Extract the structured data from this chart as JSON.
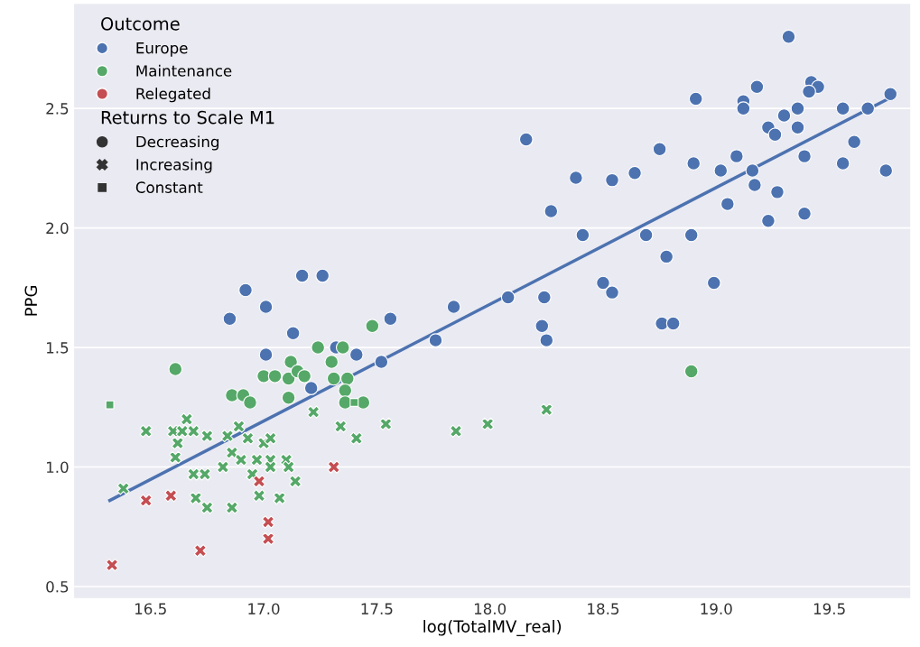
{
  "chart_data": {
    "type": "scatter",
    "xlabel": "log(TotalMV_real)",
    "ylabel": "PPG",
    "legend_title": [
      "Outcome",
      "Returns to Scale M1"
    ],
    "xlim": [
      16.16,
      19.86
    ],
    "ylim": [
      0.45,
      2.94
    ],
    "xticks": [
      16.5,
      {
        "value": 17,
        "label": "17.0"
      },
      17.5,
      {
        "value": 18,
        "label": "18.0"
      },
      18.5,
      {
        "value": 19,
        "label": "19.0"
      },
      19.5
    ],
    "yticks": [
      0.5,
      {
        "value": 1,
        "label": "1.0"
      },
      1.5,
      {
        "value": 2,
        "label": "2.0"
      },
      2.5
    ],
    "grid": "y",
    "legend": "top left",
    "series": [
      {
        "name": "Europe",
        "marker": "circle",
        "color": "#4c72b0",
        "x": [
          16.85,
          16.92,
          17.01,
          17.17,
          17.26,
          17.13,
          17.01,
          17.21,
          17.32,
          17.41,
          17.52,
          17.56,
          17.84,
          17.76,
          18.16,
          18.08,
          18.24,
          18.23,
          18.25,
          18.27,
          18.38,
          18.41,
          18.54,
          18.5,
          18.54,
          18.64,
          18.75,
          18.69,
          18.78,
          18.76,
          18.81,
          18.89,
          18.99,
          18.9,
          18.91,
          19.02,
          19.05,
          19.09,
          19.32,
          19.18,
          19.12,
          19.12,
          19.42,
          19.45,
          19.41,
          19.77,
          19.36,
          19.3,
          19.56,
          19.67,
          19.23,
          19.26,
          19.36,
          19.61,
          19.39,
          19.16,
          19.56,
          19.75,
          19.17,
          19.27,
          19.23,
          19.39
        ],
        "values": [
          1.62,
          1.74,
          1.67,
          1.8,
          1.8,
          1.56,
          1.47,
          1.33,
          1.5,
          1.47,
          1.44,
          1.62,
          1.67,
          1.53,
          2.37,
          1.71,
          1.71,
          1.59,
          1.53,
          2.07,
          2.21,
          1.97,
          2.2,
          1.77,
          1.73,
          2.23,
          2.33,
          1.97,
          1.88,
          1.6,
          1.6,
          1.97,
          1.77,
          2.27,
          2.54,
          2.24,
          2.1,
          2.3,
          2.8,
          2.59,
          2.53,
          2.5,
          2.61,
          2.59,
          2.57,
          2.56,
          2.5,
          2.47,
          2.5,
          2.5,
          2.42,
          2.39,
          2.42,
          2.36,
          2.3,
          2.24,
          2.27,
          2.24,
          2.18,
          2.15,
          2.03,
          2.06
        ]
      },
      {
        "name": "Maintenance",
        "marker": "circle",
        "color": "#55a868",
        "x": [
          16.61,
          16.86,
          16.91,
          16.94,
          17.0,
          17.05,
          17.11,
          17.12,
          17.15,
          17.18,
          17.11,
          17.24,
          17.3,
          17.31,
          17.35,
          17.37,
          17.36,
          17.36,
          17.44,
          17.48,
          18.89
        ],
        "values": [
          1.41,
          1.3,
          1.3,
          1.27,
          1.38,
          1.38,
          1.37,
          1.44,
          1.4,
          1.38,
          1.29,
          1.5,
          1.44,
          1.37,
          1.5,
          1.37,
          1.32,
          1.27,
          1.27,
          1.59,
          1.4
        ]
      },
      {
        "marker": "cross",
        "color": "#55a868",
        "x": [
          16.48,
          16.66,
          16.6,
          16.64,
          16.69,
          16.75,
          16.62,
          16.61,
          16.84,
          16.89,
          16.93,
          16.86,
          16.9,
          17.0,
          17.03,
          16.97,
          17.03,
          17.1,
          17.03,
          17.11,
          16.82,
          16.69,
          16.74,
          16.95,
          17.14,
          16.38,
          16.7,
          16.75,
          16.86,
          16.98,
          17.07,
          17.22,
          17.34,
          17.41,
          17.54,
          17.85,
          17.99,
          18.25
        ],
        "values": [
          1.15,
          1.2,
          1.15,
          1.15,
          1.15,
          1.13,
          1.1,
          1.04,
          1.13,
          1.17,
          1.12,
          1.06,
          1.03,
          1.1,
          1.12,
          1.03,
          1.03,
          1.03,
          1.0,
          1.0,
          1.0,
          0.97,
          0.97,
          0.97,
          0.94,
          0.91,
          0.87,
          0.83,
          0.83,
          0.88,
          0.87,
          1.23,
          1.17,
          1.12,
          1.18,
          1.15,
          1.18,
          1.24
        ]
      },
      {
        "name": "Relegated",
        "marker": "cross",
        "color": "#c44e52",
        "x": [
          16.48,
          16.59,
          16.98,
          17.31,
          17.02,
          17.02,
          16.72,
          16.33
        ],
        "values": [
          0.86,
          0.88,
          0.94,
          1.0,
          0.77,
          0.7,
          0.65,
          0.59
        ]
      },
      {
        "marker": "square",
        "color": "#55a868",
        "x": [
          16.32,
          17.4
        ],
        "values": [
          1.26,
          1.27
        ]
      },
      {
        "name": "Decreasing",
        "marker": "circle",
        "color": "#333333"
      },
      {
        "name": "Increasing",
        "marker": "cross",
        "color": "#333333"
      },
      {
        "name": "Constant",
        "marker": "square",
        "color": "#333333"
      },
      {
        "type": "line",
        "color": "#4c72b0",
        "line_style": "solid",
        "x": [
          16.32,
          19.76
        ],
        "values": [
          0.86,
          2.54
        ]
      }
    ]
  }
}
